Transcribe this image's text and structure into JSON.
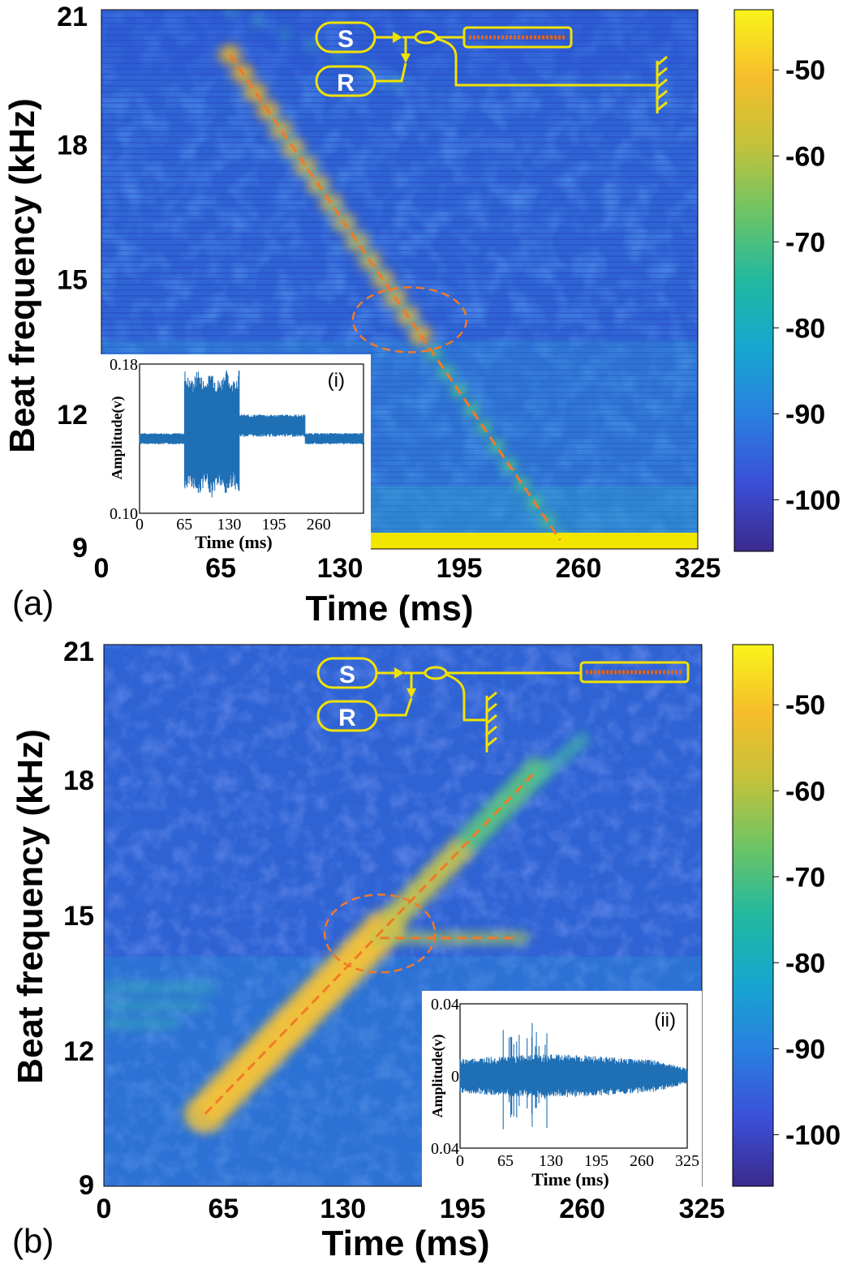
{
  "figure": {
    "panels": [
      {
        "id": "a",
        "label": "(a)"
      },
      {
        "id": "b",
        "label": "(b)"
      }
    ],
    "colorbar_ticks": [
      "-50",
      "-60",
      "-70",
      "-80",
      "-90",
      "-100"
    ],
    "panel_b_last_colorbar_tick": "-100",
    "schematic": {
      "source": "S",
      "reference": "R",
      "color": "#f2e200"
    }
  },
  "colors": {
    "background_blue": "#2f63d4",
    "ridge": "#e6b030",
    "fit_line": "#f07a28",
    "colormap": [
      "#3b2a8c",
      "#3b4fd8",
      "#2a7fe0",
      "#16a6cf",
      "#21b9a0",
      "#6cc466",
      "#c3c23a",
      "#f6bd2b",
      "#f8f41a"
    ],
    "inset_signal": "#1f6fb5"
  },
  "chart_data": [
    {
      "type": "heatmap",
      "panel": "(a)",
      "title": "",
      "xlabel": "Time (ms)",
      "ylabel": "Beat frequency (kHz)",
      "xlim": [
        0,
        325
      ],
      "ylim": [
        9,
        21
      ],
      "xticks": [
        "0",
        "65",
        "130",
        "195",
        "260",
        "325"
      ],
      "yticks": [
        "9",
        "12",
        "15",
        "18",
        "21"
      ],
      "colorbar": {
        "ticks": [
          -50,
          -60,
          -70,
          -80,
          -90,
          -100
        ],
        "range": [
          -106,
          -43
        ]
      },
      "ridge": {
        "x": [
          70,
          250
        ],
        "y": [
          20.0,
          9.2
        ],
        "description": "down-chirp"
      },
      "fit_line": {
        "x": [
          70,
          250
        ],
        "y": [
          20.0,
          9.2
        ]
      },
      "circled_region": {
        "x": 168,
        "y": 14.1
      },
      "inset": {
        "tag": "(i)",
        "xlabel": "Time (ms)",
        "ylabel": "Amplitude(v)",
        "xticks": [
          "0",
          "65",
          "130",
          "195",
          "260"
        ],
        "yticks": [
          "0.18",
          "0.10"
        ],
        "ylim": [
          0.1,
          0.18
        ],
        "burst_start_ms": 65,
        "burst_end_ms": 145
      }
    },
    {
      "type": "heatmap",
      "panel": "(b)",
      "title": "",
      "xlabel": "Time (ms)",
      "ylabel": "Beat frequency (kHz)",
      "xlim": [
        0,
        325
      ],
      "ylim": [
        9,
        21
      ],
      "xticks": [
        "0",
        "65",
        "130",
        "195",
        "260",
        "325"
      ],
      "yticks": [
        "9",
        "12",
        "15",
        "18",
        "21"
      ],
      "colorbar": {
        "ticks": [
          -50,
          -60,
          -70,
          -80,
          -90,
          -100
        ],
        "range": [
          -106,
          -43
        ]
      },
      "ridge": {
        "x": [
          55,
          235
        ],
        "y": [
          10.6,
          18.2
        ],
        "description": "up-chirp"
      },
      "fit_line": {
        "x": [
          55,
          235
        ],
        "y": [
          10.6,
          18.2
        ]
      },
      "secondary_line": {
        "x": [
          150,
          225
        ],
        "y": [
          14.5,
          14.5
        ]
      },
      "circled_region": {
        "x": 150,
        "y": 14.6
      },
      "inset": {
        "tag": "(ii)",
        "xlabel": "Time (ms)",
        "ylabel": "Amplitude(v)",
        "xticks": [
          "0",
          "65",
          "130",
          "195",
          "260",
          "325"
        ],
        "yticks": [
          "0.04",
          "0",
          "0.04"
        ],
        "ylim": [
          -0.04,
          0.04
        ]
      }
    }
  ]
}
